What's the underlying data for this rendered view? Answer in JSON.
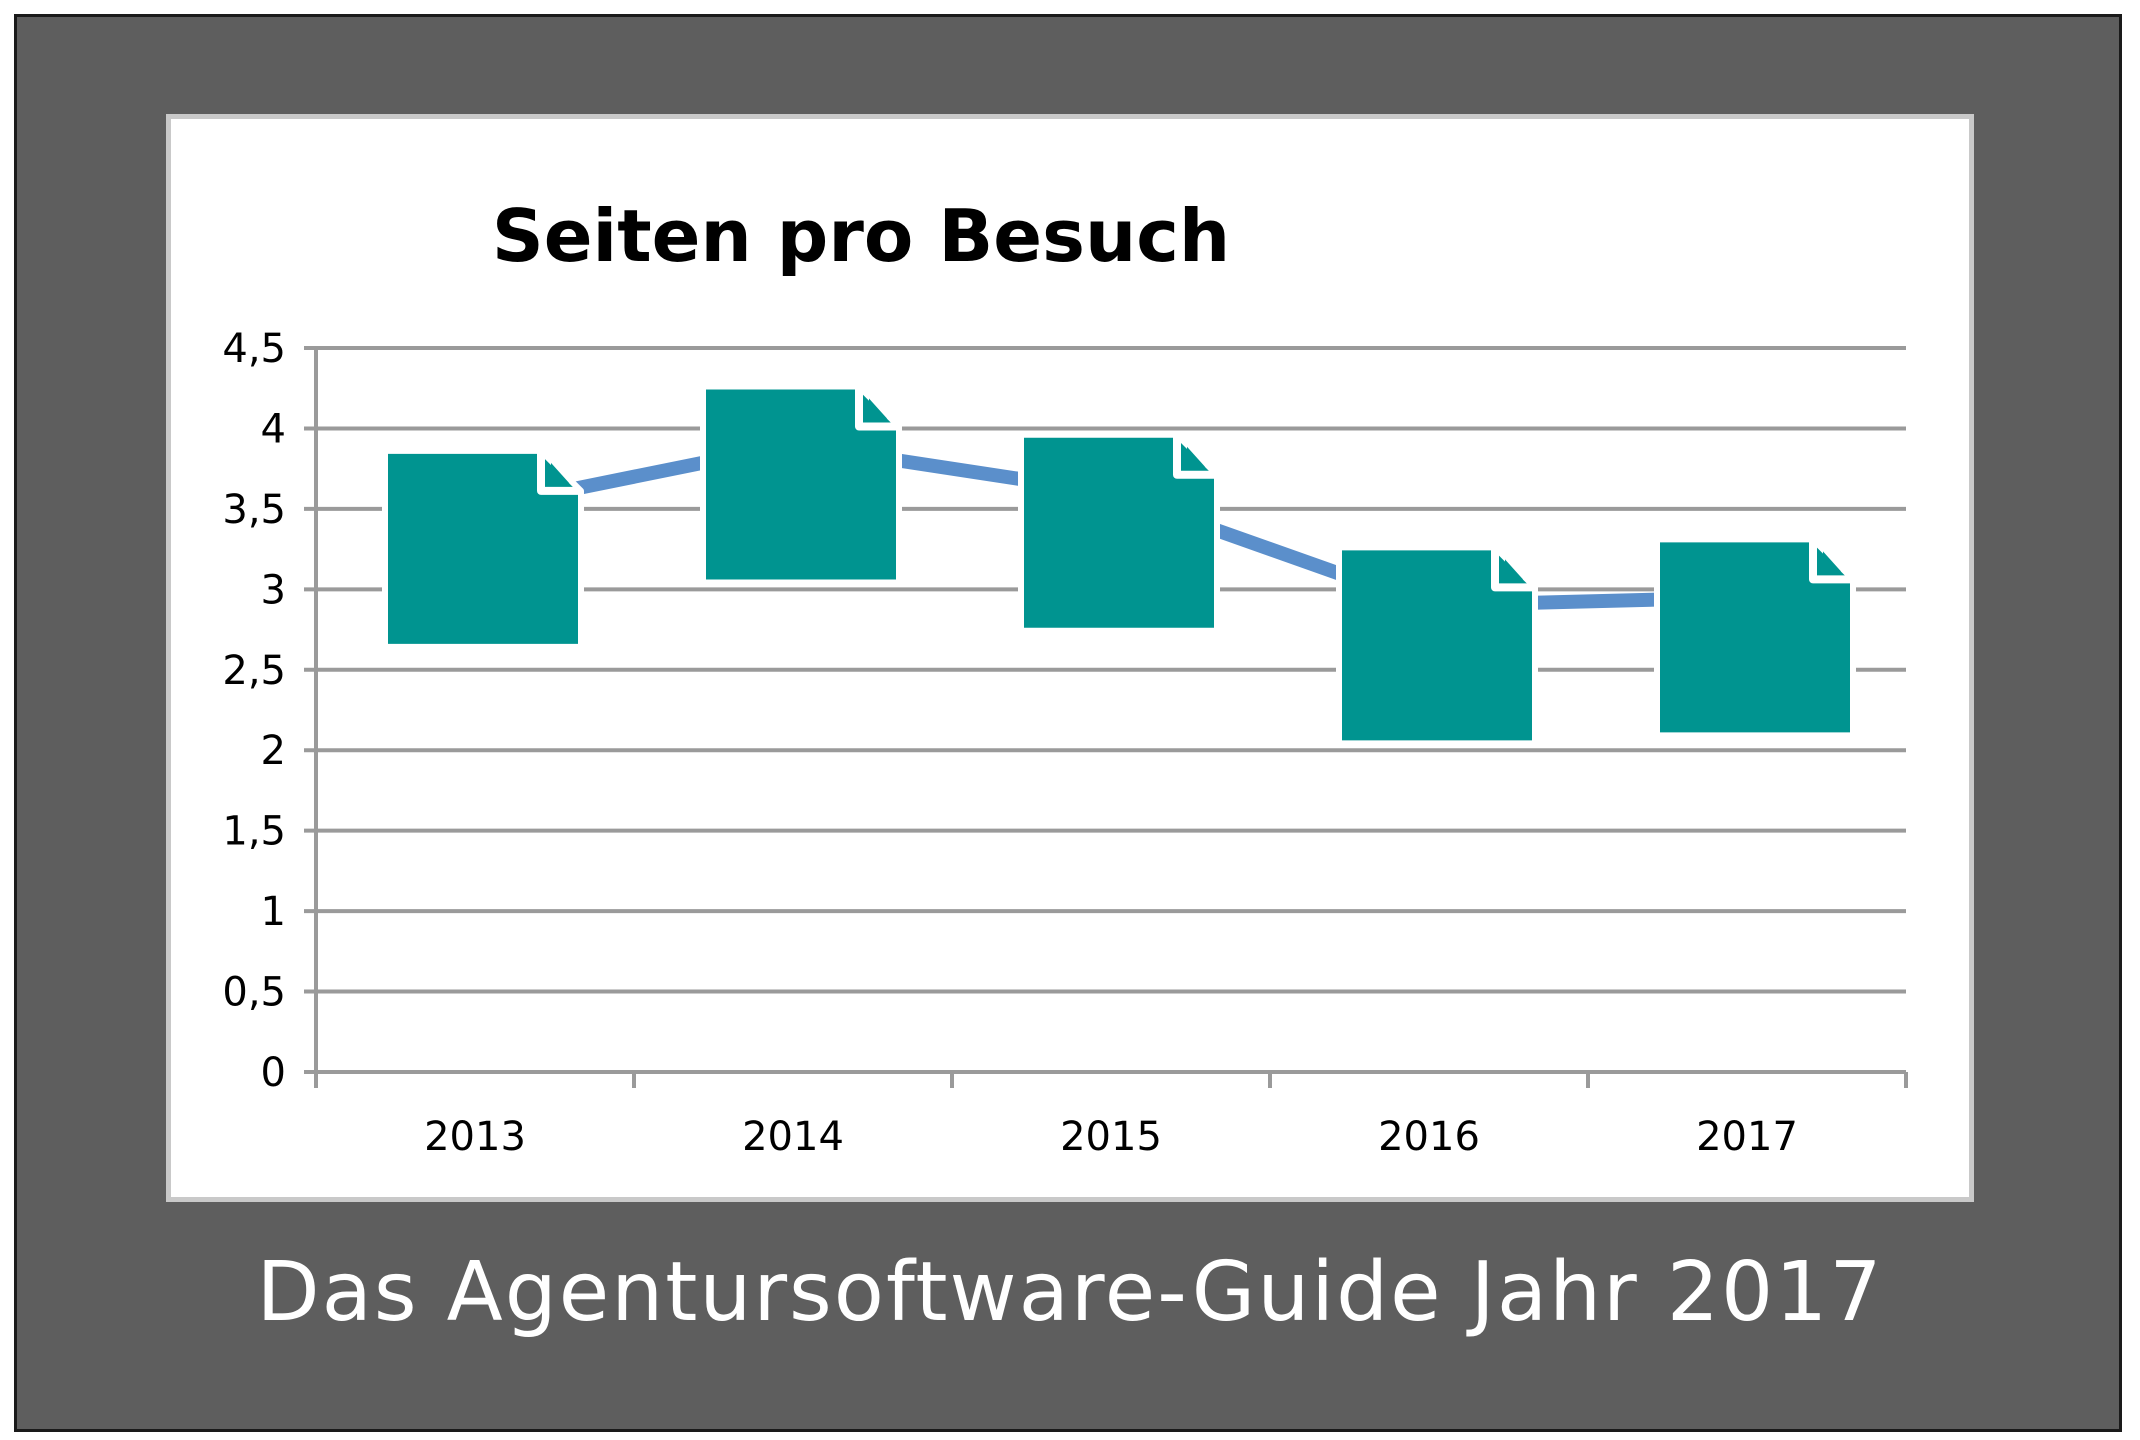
{
  "caption": "Das Agentursoftware-Guide Jahr 2017",
  "colors": {
    "frame": "#5e5e5e",
    "line": "#5b8fcb",
    "icon": "#009490",
    "grid": "#9a9a9a"
  },
  "icon_name": "document-icon",
  "chart_data": {
    "type": "line",
    "title": "Seiten pro Besuch",
    "xlabel": "",
    "ylabel": "",
    "categories": [
      "2013",
      "2014",
      "2015",
      "2016",
      "2017"
    ],
    "values": [
      3.5,
      3.9,
      3.6,
      2.9,
      2.95
    ],
    "ylim": [
      0,
      4.5
    ],
    "yticks": [
      0,
      0.5,
      1,
      1.5,
      2,
      2.5,
      3,
      3.5,
      4,
      4.5
    ],
    "ytick_labels": [
      "0",
      "0,5",
      "1",
      "1,5",
      "2",
      "2,5",
      "3",
      "3,5",
      "4",
      "4,5"
    ],
    "grid": true,
    "legend": "none",
    "marker": "document icon"
  }
}
